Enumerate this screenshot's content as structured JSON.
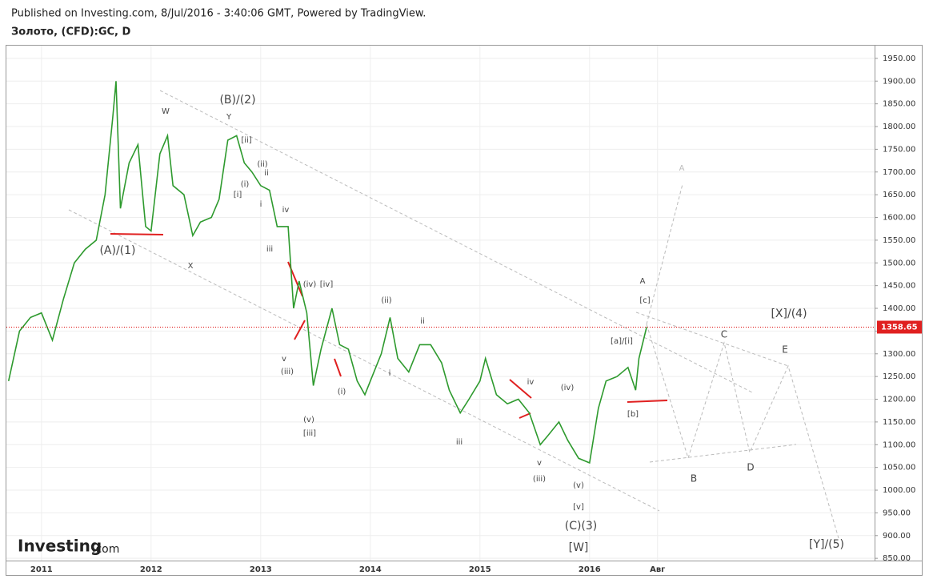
{
  "header": {
    "published": "Published on Investing.com, 8/Jul/2016 - 3:40:06 GMT, Powered by TradingView.",
    "symbol": "Золото, (CFD):GC, D"
  },
  "logo": {
    "brand": "Investing",
    "suffix": ".com"
  },
  "chart_data": {
    "type": "line",
    "color": "#2e9a2e",
    "series": [
      {
        "name": "GC",
        "x": [
          2010.7,
          2010.8,
          2010.9,
          2011.0,
          2011.1,
          2011.2,
          2011.3,
          2011.4,
          2011.5,
          2011.58,
          2011.65,
          2011.68,
          2011.72,
          2011.8,
          2011.88,
          2011.95,
          2012.0,
          2012.08,
          2012.15,
          2012.2,
          2012.3,
          2012.38,
          2012.45,
          2012.55,
          2012.62,
          2012.7,
          2012.78,
          2012.85,
          2012.92,
          2013.0,
          2013.08,
          2013.15,
          2013.25,
          2013.3,
          2013.35,
          2013.42,
          2013.48,
          2013.55,
          2013.65,
          2013.72,
          2013.8,
          2013.88,
          2013.95,
          2014.0,
          2014.1,
          2014.18,
          2014.25,
          2014.35,
          2014.45,
          2014.55,
          2014.65,
          2014.72,
          2014.82,
          2014.9,
          2015.0,
          2015.05,
          2015.15,
          2015.25,
          2015.35,
          2015.45,
          2015.55,
          2015.62,
          2015.72,
          2015.8,
          2015.9,
          2016.0,
          2016.08,
          2016.15,
          2016.25,
          2016.35,
          2016.42,
          2016.45,
          2016.52
        ],
        "values": [
          1240,
          1350,
          1380,
          1390,
          1330,
          1420,
          1500,
          1530,
          1550,
          1650,
          1820,
          1900,
          1620,
          1720,
          1760,
          1580,
          1570,
          1740,
          1780,
          1670,
          1650,
          1560,
          1590,
          1600,
          1640,
          1770,
          1780,
          1720,
          1700,
          1670,
          1660,
          1580,
          1580,
          1400,
          1460,
          1390,
          1230,
          1310,
          1400,
          1320,
          1310,
          1240,
          1210,
          1240,
          1300,
          1380,
          1290,
          1260,
          1320,
          1320,
          1280,
          1220,
          1170,
          1200,
          1240,
          1290,
          1210,
          1190,
          1200,
          1170,
          1100,
          1120,
          1150,
          1110,
          1070,
          1060,
          1180,
          1240,
          1250,
          1270,
          1220,
          1290,
          1358.65
        ]
      }
    ],
    "current_price": {
      "value": 1358.65,
      "label": "1358.65"
    },
    "xlim": [
      2010.68,
      2018.6
    ],
    "ylim": [
      845,
      1978
    ],
    "xticks": [
      2011,
      2012,
      2013,
      2014,
      2015,
      2016,
      {
        "value": 2016.62,
        "label": "Авг"
      }
    ],
    "yticks": [
      {
        "value": 850,
        "label": "850.00"
      },
      {
        "value": 900,
        "label": "900.00"
      },
      {
        "value": 950,
        "label": "950.00"
      },
      {
        "value": 1000,
        "label": "1000.00"
      },
      {
        "value": 1050,
        "label": "1050.00"
      },
      {
        "value": 1100,
        "label": "1100.00"
      },
      {
        "value": 1150,
        "label": "1150.00"
      },
      {
        "value": 1200,
        "label": "1200.00"
      },
      {
        "value": 1250,
        "label": "1250.00"
      },
      {
        "value": 1300,
        "label": "1300.00"
      },
      {
        "value": 1350,
        "label": "1350.00"
      },
      {
        "value": 1400,
        "label": "1400.00"
      },
      {
        "value": 1450,
        "label": "1450.00"
      },
      {
        "value": 1500,
        "label": "1500.00"
      },
      {
        "value": 1550,
        "label": "1550.00"
      },
      {
        "value": 1600,
        "label": "1600.00"
      },
      {
        "value": 1650,
        "label": "1650.00"
      },
      {
        "value": 1700,
        "label": "1700.00"
      },
      {
        "value": 1750,
        "label": "1750.00"
      },
      {
        "value": 1800,
        "label": "1800.00"
      },
      {
        "value": 1850,
        "label": "1850.00"
      },
      {
        "value": 1900,
        "label": "1900.00"
      },
      {
        "value": 1950,
        "label": "1950.00"
      }
    ],
    "grid": true,
    "annotations": [
      "W",
      "(B)/(2)",
      "Y",
      "[ii]",
      "(ii)",
      "ii",
      "(i)",
      "[i]",
      "i",
      "iv",
      "iii",
      "(A)/(1)",
      "X",
      "(iv)",
      "[iv]",
      "v",
      "(iii)",
      "(i)",
      "(v)",
      "[iii]",
      "(ii)",
      "ii",
      "i",
      "iii",
      "iv",
      "(iv)",
      "v",
      "(iii)",
      "(v)",
      "[v]",
      "(C)(3)",
      "[W]",
      "A",
      "[c]",
      "[a]/[i]",
      "[b]",
      "A",
      "[X]/(4)",
      "C",
      "E",
      "B",
      "D",
      "[Y]/(5)"
    ]
  }
}
